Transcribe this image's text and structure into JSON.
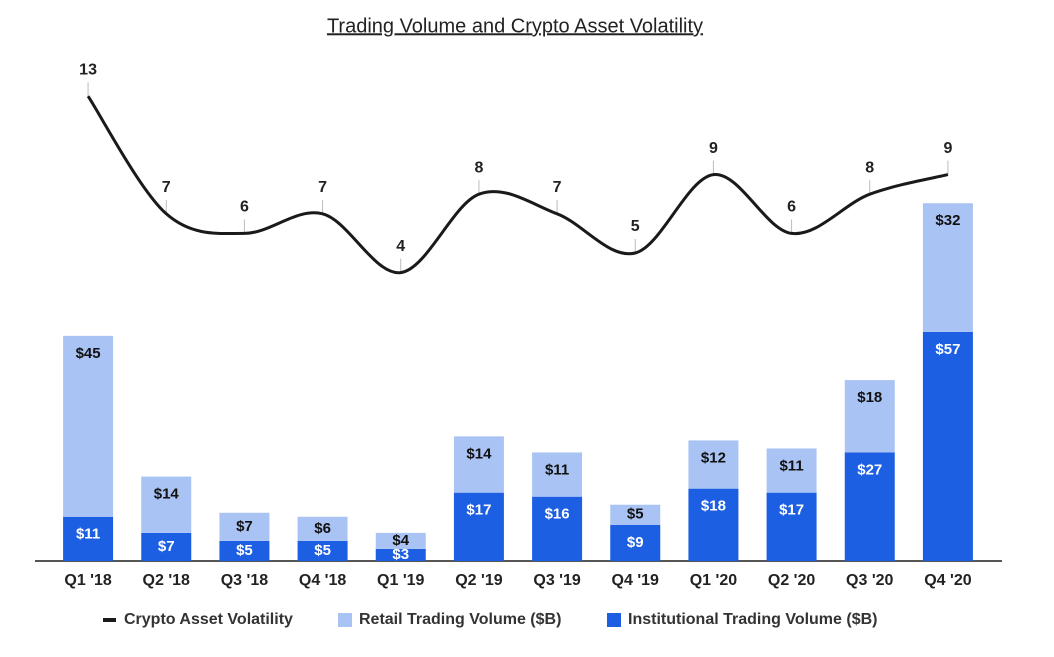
{
  "chart_data": {
    "type": "bar",
    "stacked": true,
    "title": "Trading Volume and Crypto Asset Volatility",
    "categories": [
      "Q1 '18",
      "Q2 '18",
      "Q3 '18",
      "Q4 '18",
      "Q1 '19",
      "Q2 '19",
      "Q3 '19",
      "Q4 '19",
      "Q1 '20",
      "Q2 '20",
      "Q3 '20",
      "Q4 '20"
    ],
    "series": [
      {
        "name": "Crypto Asset Volatility",
        "type": "line",
        "axis": "y2",
        "color": "#1a1a1a",
        "values": [
          13,
          7,
          6,
          7,
          4,
          8,
          7,
          5,
          9,
          6,
          8,
          9
        ]
      },
      {
        "name": "Retail Trading Volume ($B)",
        "color": "#a9c3f4",
        "values": [
          45,
          14,
          7,
          6,
          4,
          14,
          11,
          5,
          12,
          11,
          18,
          32
        ],
        "value_labels": [
          "$45",
          "$14",
          "$7",
          "$6",
          "$4",
          "$14",
          "$11",
          "$5",
          "$12",
          "$11",
          "$18",
          "$32"
        ]
      },
      {
        "name": "Institutional Trading Volume ($B)",
        "color": "#1d5fe3",
        "values": [
          11,
          7,
          5,
          5,
          3,
          17,
          16,
          9,
          18,
          17,
          27,
          57
        ],
        "value_labels": [
          "$11",
          "$7",
          "$5",
          "$5",
          "$3",
          "$17",
          "$16",
          "$9",
          "$18",
          "$17",
          "$27",
          "$57"
        ]
      }
    ],
    "ylim": [
      0,
      100
    ],
    "y2lim": [
      0,
      15
    ],
    "legend": "bottom"
  }
}
